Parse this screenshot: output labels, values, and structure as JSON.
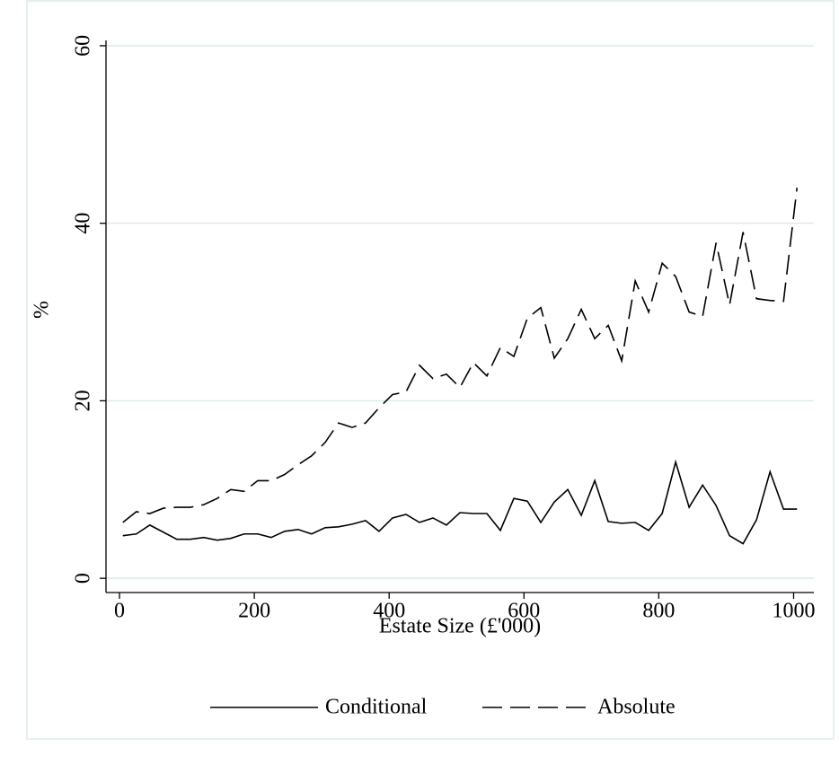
{
  "chart_data": {
    "type": "line",
    "xlabel": "Estate Size (£'000)",
    "ylabel": "%",
    "x": [
      5,
      25,
      45,
      65,
      85,
      105,
      125,
      145,
      165,
      185,
      205,
      225,
      245,
      265,
      285,
      305,
      325,
      345,
      365,
      385,
      405,
      425,
      445,
      465,
      485,
      505,
      525,
      545,
      565,
      585,
      605,
      625,
      645,
      665,
      685,
      705,
      725,
      745,
      765,
      785,
      805,
      825,
      845,
      865,
      885,
      905,
      925,
      945,
      965,
      985,
      1005
    ],
    "series": [
      {
        "name": "Conditional",
        "color": "#000000",
        "dash": "none",
        "values": [
          4.8,
          5.0,
          6.0,
          5.2,
          4.4,
          4.4,
          4.6,
          4.3,
          4.5,
          5.0,
          5.0,
          4.6,
          5.3,
          5.5,
          5.0,
          5.7,
          5.8,
          6.1,
          6.5,
          5.3,
          6.8,
          7.2,
          6.3,
          6.8,
          6.0,
          7.4,
          7.3,
          7.3,
          5.4,
          9.0,
          8.7,
          6.3,
          8.6,
          10.0,
          7.1,
          11.0,
          6.4,
          6.2,
          6.3,
          5.4,
          7.3,
          13.1,
          8.0,
          10.5,
          8.2,
          4.8,
          3.9,
          6.6,
          12.0,
          7.8,
          7.8
        ]
      },
      {
        "name": "Absolute",
        "color": "#000000",
        "dash": "22 9",
        "values": [
          6.3,
          7.5,
          7.3,
          7.9,
          8.0,
          8.0,
          8.3,
          9.0,
          10.0,
          9.8,
          11.0,
          11.0,
          11.7,
          12.8,
          13.8,
          15.3,
          17.5,
          17.0,
          17.5,
          19.2,
          20.7,
          21.0,
          24.0,
          22.5,
          23.0,
          21.5,
          24.3,
          22.8,
          26.0,
          25.0,
          29.3,
          30.5,
          24.8,
          27.0,
          30.3,
          27.0,
          28.5,
          24.5,
          33.5,
          30.0,
          35.5,
          34.0,
          30.0,
          29.5,
          37.8,
          30.8,
          39.0,
          31.5,
          31.3,
          31.2,
          44.0
        ]
      }
    ],
    "xlim": [
      -20,
      1030
    ],
    "xticks": [
      0,
      200,
      400,
      600,
      800,
      1000
    ],
    "ylim": [
      -1.6,
      60.6
    ],
    "yticks": [
      0,
      20,
      40,
      60
    ],
    "grid": true,
    "legend": "bottom"
  }
}
